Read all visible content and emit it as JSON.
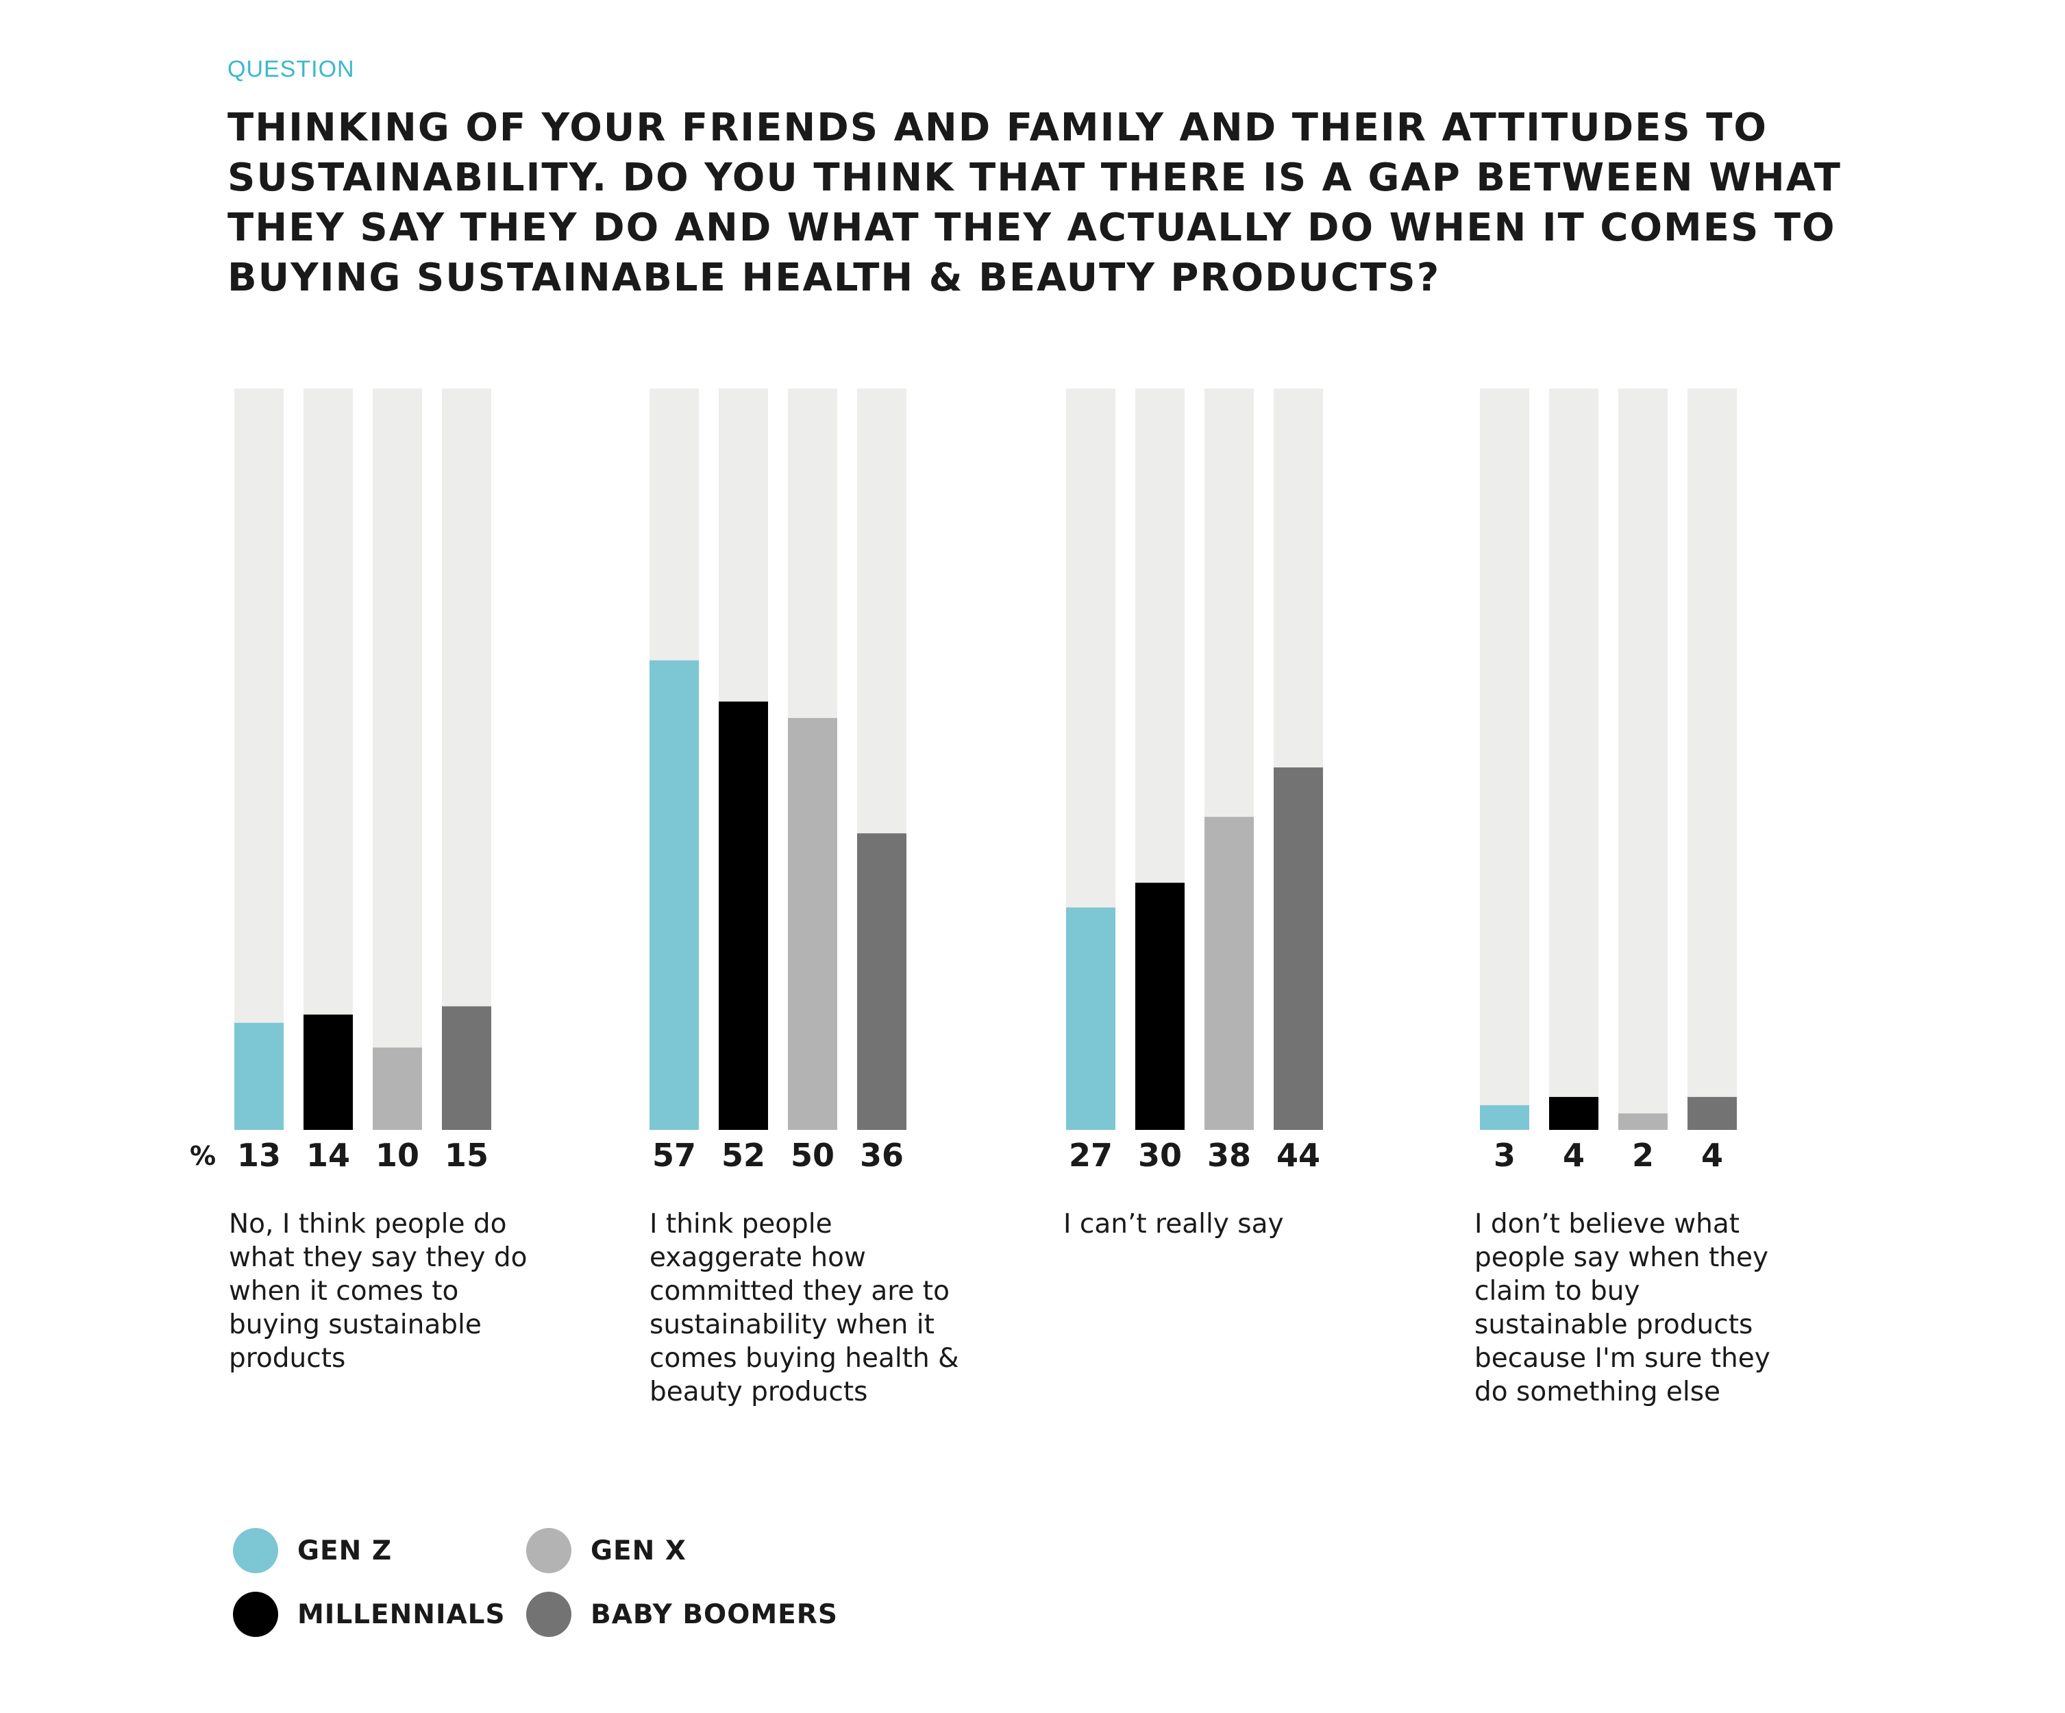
{
  "question_label": "QUESTION",
  "question_title": "THINKING OF YOUR FRIENDS AND FAMILY AND THEIR ATTITUDES TO SUSTAINABILITY. DO YOU THINK THAT THERE IS A GAP BETWEEN WHAT THEY SAY THEY DO AND WHAT THEY ACTUALLY DO WHEN IT COMES TO BUYING SUSTAINABLE HEALTH & BEAUTY PRODUCTS?",
  "chart_data": {
    "type": "bar",
    "unit_label": "%",
    "ylim": [
      0,
      90
    ],
    "categories": [
      "No, I think people do what they say they do when it comes to buying sustainable products",
      "I think people exaggerate how committed they are to sustainability when it comes buying health & beauty products",
      "I can’t really say",
      "I don’t believe what people say when they claim to buy sustainable products because I'm sure they do something else"
    ],
    "series": [
      {
        "name": "GEN Z",
        "color": "#7dc6d4",
        "values": [
          13,
          57,
          27,
          3
        ]
      },
      {
        "name": "MILLENNIALS",
        "color": "#000000",
        "values": [
          14,
          52,
          30,
          4
        ]
      },
      {
        "name": "GEN X",
        "color": "#b3b3b3",
        "values": [
          10,
          50,
          38,
          2
        ]
      },
      {
        "name": "BABY BOOMERS",
        "color": "#737373",
        "values": [
          15,
          36,
          44,
          4
        ]
      }
    ],
    "track_color": "#ededec",
    "legend_position": "bottom-left",
    "grid": false
  }
}
